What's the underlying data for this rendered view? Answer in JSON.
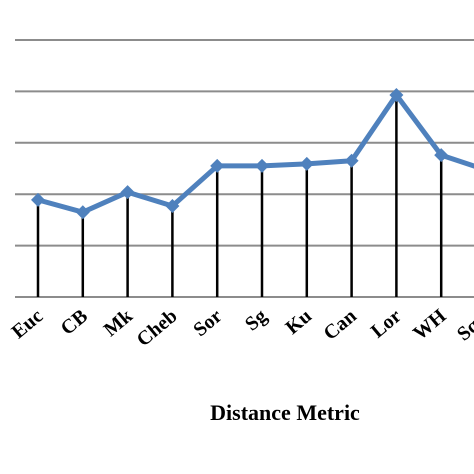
{
  "chart_data": {
    "type": "line",
    "x_label": "Distance Metric",
    "categories": [
      "Euc",
      "CB",
      "Mk",
      "Cheb",
      "Sor",
      "Sg",
      "Ku",
      "Can",
      "Lor",
      "WH",
      "SqC"
    ],
    "values": [
      1.89,
      1.65,
      2.04,
      1.77,
      2.55,
      2.55,
      2.59,
      2.65,
      3.93,
      2.76,
      2.47
    ],
    "color": "#4f81bd",
    "drop_line_color": "#000000",
    "ylim": [
      0,
      5
    ],
    "gridlines": [
      0,
      1,
      2,
      3,
      4,
      5
    ],
    "grid": true
  }
}
